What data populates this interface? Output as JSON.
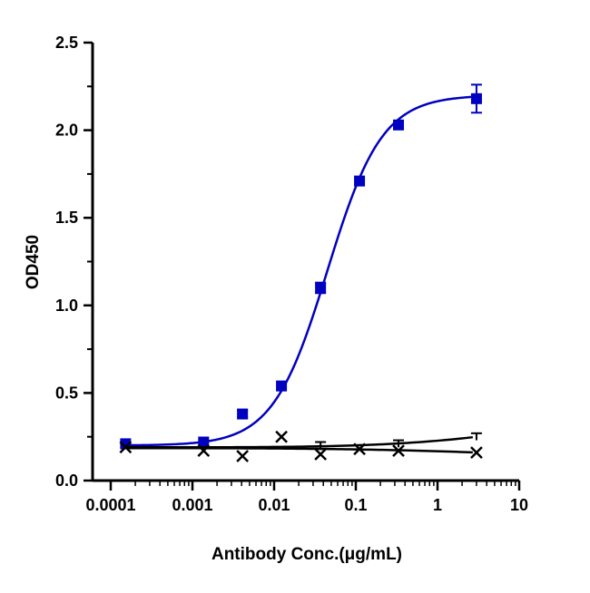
{
  "chart_data": {
    "type": "scatter",
    "xlabel": "Antibody Conc.(μg/mL)",
    "ylabel": "OD450",
    "xscale": "log",
    "xlim": [
      0.0001,
      10
    ],
    "ylim": [
      0,
      2.5
    ],
    "xticks": [
      "0.0001",
      "0.001",
      "0.01",
      "0.1",
      "1",
      "10"
    ],
    "yticks": [
      "0.0",
      "0.5",
      "1.0",
      "1.5",
      "2.0",
      "2.5"
    ],
    "grid": false,
    "series": [
      {
        "color": "#0000c0",
        "marker": "square",
        "fit": "sigmoid",
        "x": [
          0.000152,
          0.00137,
          0.0041,
          0.0123,
          0.037,
          0.111,
          0.333,
          3
        ],
        "y": [
          0.21,
          0.22,
          0.38,
          0.54,
          1.1,
          1.71,
          2.03,
          2.18
        ],
        "yerr": [
          0,
          0,
          0.02,
          0,
          0.03,
          0,
          0,
          0.08
        ]
      },
      {
        "color": "#000000",
        "marker": "x",
        "fit": "line",
        "x": [
          0.000152,
          0.00137,
          0.0041,
          0.0123,
          0.037,
          0.111,
          0.333,
          3
        ],
        "y": [
          0.19,
          0.17,
          0.14,
          0.25,
          0.15,
          0.18,
          0.17,
          0.16
        ]
      },
      {
        "color": "#000000",
        "marker": "none",
        "fit": "line",
        "x": [
          0.000152,
          0.00137,
          0.0041,
          0.0123,
          0.037,
          0.111,
          0.333,
          3
        ],
        "y": [
          0.19,
          0.19,
          0.19,
          0.19,
          0.2,
          0.2,
          0.21,
          0.25
        ],
        "yerr": [
          0,
          0,
          0,
          0,
          0.02,
          0,
          0.02,
          0.02
        ]
      }
    ]
  }
}
